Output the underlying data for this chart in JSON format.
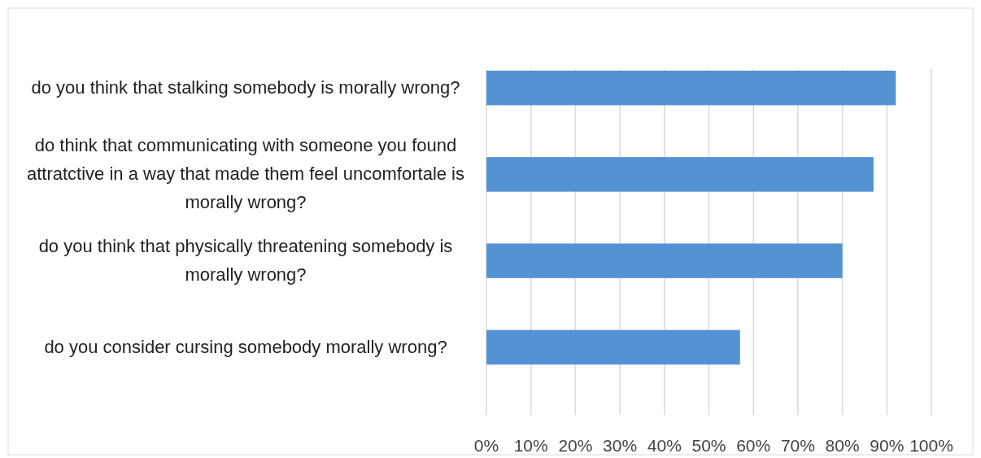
{
  "chart_data": {
    "type": "bar",
    "orientation": "horizontal",
    "categories": [
      "do you think that stalking somebody is morally wrong?",
      "do think that communicating with someone you found attratctive in a way that made them feel uncomfortale is morally wrong?",
      "do you think that physically threatening somebody is morally wrong?",
      "do you consider cursing somebody morally wrong?"
    ],
    "values": [
      92,
      87,
      80,
      57
    ],
    "color": "#5592d3",
    "xlim": [
      0,
      100
    ],
    "xticks": [
      {
        "value": 0,
        "label": "0%"
      },
      {
        "value": 10,
        "label": "10%"
      },
      {
        "value": 20,
        "label": "20%"
      },
      {
        "value": 30,
        "label": "30%"
      },
      {
        "value": 40,
        "label": "40%"
      },
      {
        "value": 50,
        "label": "50%"
      },
      {
        "value": 60,
        "label": "60%"
      },
      {
        "value": 70,
        "label": "70%"
      },
      {
        "value": 80,
        "label": "80%"
      },
      {
        "value": 90,
        "label": "90%"
      },
      {
        "value": 100,
        "label": "100%"
      }
    ],
    "grid": "x"
  }
}
